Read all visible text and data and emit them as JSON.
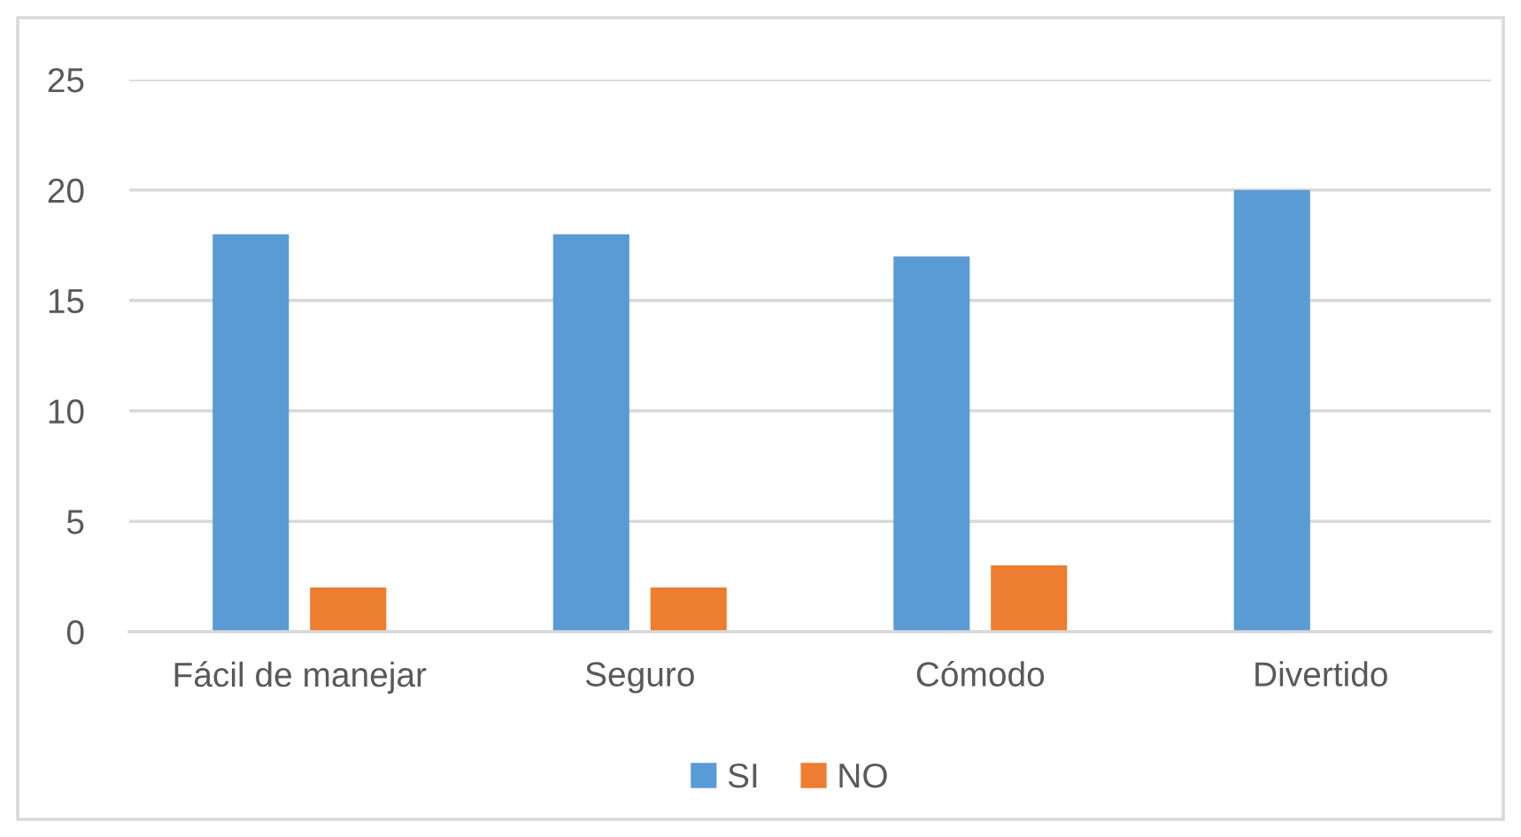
{
  "chart_data": {
    "type": "bar",
    "categories": [
      "Fácil de manejar",
      "Seguro",
      "Cómodo",
      "Divertido"
    ],
    "series": [
      {
        "name": "SI",
        "color": "#5b9bd5",
        "values": [
          18,
          18,
          17,
          20
        ]
      },
      {
        "name": "NO",
        "color": "#ed7d31",
        "values": [
          2,
          2,
          3,
          0
        ]
      }
    ],
    "ylim": [
      0,
      25
    ],
    "yticks": [
      0,
      5,
      10,
      15,
      20,
      25
    ],
    "grid": "y",
    "legend": "bottom"
  }
}
